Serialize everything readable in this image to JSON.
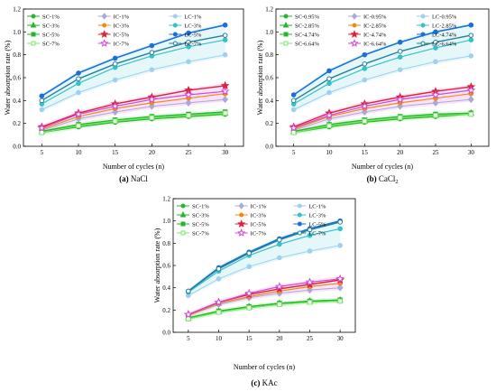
{
  "colors": {
    "SC": "#22b82a",
    "IC": "#ee8a1d",
    "LC": "#1a6fd8",
    "LC_light": "#34c2c9",
    "SC_7": "#7de86a",
    "IC_5": "#e0203a",
    "IC_7": "#d04ad8",
    "LC_7": "#2a7f9a",
    "faint_IC": "#a9a9dd",
    "faint_LC": "#9fd0f0",
    "band_SC": "#bff0b8",
    "band_IC": "#f5c2ea",
    "band_LC": "#c8eef5"
  },
  "chart_data": [
    {
      "type": "line",
      "panel": "a",
      "caption_bold": "(a)",
      "caption_text": "NaCl",
      "xlabel": "Number of cycles (n)",
      "ylabel": "Water absorption rate (%)",
      "x": [
        5,
        10,
        15,
        20,
        25,
        30
      ],
      "xlim": [
        2.5,
        32.5
      ],
      "ylim": [
        0,
        1.2
      ],
      "xticks": [
        "5",
        "10",
        "15",
        "20",
        "25",
        "30"
      ],
      "yticks": [
        "0.0",
        "0.2",
        "0.4",
        "0.6",
        "0.8",
        "1.0",
        "1.2"
      ],
      "legend_placement": "top-left",
      "series": [
        {
          "name": "SC-1%",
          "values": [
            0.12,
            0.17,
            0.21,
            0.24,
            0.26,
            0.28
          ]
        },
        {
          "name": "IC-1%",
          "values": [
            0.14,
            0.24,
            0.3,
            0.35,
            0.38,
            0.41
          ]
        },
        {
          "name": "LC-1%",
          "values": [
            0.32,
            0.47,
            0.58,
            0.67,
            0.74,
            0.8
          ]
        },
        {
          "name": "SC-3%",
          "values": [
            0.13,
            0.18,
            0.22,
            0.25,
            0.27,
            0.29
          ]
        },
        {
          "name": "IC-3%",
          "values": [
            0.15,
            0.26,
            0.33,
            0.38,
            0.42,
            0.46
          ]
        },
        {
          "name": "LC-3%",
          "values": [
            0.37,
            0.55,
            0.69,
            0.79,
            0.87,
            0.93
          ]
        },
        {
          "name": "SC-5%",
          "values": [
            0.13,
            0.19,
            0.23,
            0.26,
            0.28,
            0.3
          ]
        },
        {
          "name": "IC-5%",
          "values": [
            0.17,
            0.29,
            0.37,
            0.43,
            0.49,
            0.53
          ]
        },
        {
          "name": "LC-5%",
          "values": [
            0.44,
            0.64,
            0.77,
            0.88,
            0.99,
            1.06
          ]
        },
        {
          "name": "SC-7%",
          "values": [
            0.12,
            0.18,
            0.22,
            0.25,
            0.27,
            0.29
          ]
        },
        {
          "name": "IC-7%",
          "values": [
            0.16,
            0.28,
            0.35,
            0.41,
            0.45,
            0.48
          ]
        },
        {
          "name": "LC-7%",
          "values": [
            0.4,
            0.59,
            0.72,
            0.82,
            0.91,
            0.97
          ]
        }
      ]
    },
    {
      "type": "line",
      "panel": "b",
      "caption_bold": "(b)",
      "caption_text": "CaCl",
      "caption_sub": "2",
      "xlabel": "Number of cycles (n)",
      "ylabel": "Water absorption rate (%)",
      "x": [
        5,
        10,
        15,
        20,
        25,
        30
      ],
      "xlim": [
        2.5,
        32.5
      ],
      "ylim": [
        0,
        1.2
      ],
      "xticks": [
        "5",
        "10",
        "15",
        "20",
        "25",
        "30"
      ],
      "yticks": [
        "0.0",
        "0.2",
        "0.4",
        "0.6",
        "0.8",
        "1.0",
        "1.2"
      ],
      "legend_placement": "top-left",
      "series": [
        {
          "name": "SC-0.95%",
          "values": [
            0.12,
            0.17,
            0.21,
            0.24,
            0.26,
            0.28
          ]
        },
        {
          "name": "IC-0.95%",
          "values": [
            0.14,
            0.24,
            0.3,
            0.35,
            0.38,
            0.41
          ]
        },
        {
          "name": "LC-0.95%",
          "values": [
            0.32,
            0.47,
            0.58,
            0.67,
            0.74,
            0.79
          ]
        },
        {
          "name": "SC-2.85%",
          "values": [
            0.13,
            0.18,
            0.22,
            0.25,
            0.27,
            0.29
          ]
        },
        {
          "name": "IC-2.85%",
          "values": [
            0.15,
            0.26,
            0.33,
            0.38,
            0.42,
            0.46
          ]
        },
        {
          "name": "LC-2.85%",
          "values": [
            0.37,
            0.55,
            0.68,
            0.78,
            0.86,
            0.93
          ]
        },
        {
          "name": "SC-4.74%",
          "values": [
            0.13,
            0.19,
            0.23,
            0.26,
            0.28,
            0.29
          ]
        },
        {
          "name": "IC-4.74%",
          "values": [
            0.17,
            0.29,
            0.37,
            0.43,
            0.48,
            0.52
          ]
        },
        {
          "name": "LC-4.74%",
          "values": [
            0.45,
            0.66,
            0.8,
            0.91,
            1.0,
            1.06
          ]
        },
        {
          "name": "SC-6.64%",
          "values": [
            0.12,
            0.18,
            0.22,
            0.25,
            0.27,
            0.28
          ]
        },
        {
          "name": "IC-6.64%",
          "values": [
            0.16,
            0.27,
            0.35,
            0.41,
            0.45,
            0.49
          ]
        },
        {
          "name": "LC-6.64%",
          "values": [
            0.4,
            0.59,
            0.72,
            0.83,
            0.91,
            0.97
          ]
        }
      ]
    },
    {
      "type": "line",
      "panel": "c",
      "caption_bold": "(c)",
      "caption_text": "KAc",
      "xlabel": "Number of cycles (n)",
      "ylabel": "Water absorption rate (%)",
      "x": [
        5,
        10,
        15,
        20,
        25,
        30
      ],
      "xlim": [
        2.5,
        32.5
      ],
      "ylim": [
        0,
        1.2
      ],
      "xticks": [
        "5",
        "10",
        "15",
        "20",
        "25",
        "30"
      ],
      "yticks": [
        "0.0",
        "0.2",
        "0.4",
        "0.6",
        "0.8",
        "1.0",
        "1.2"
      ],
      "legend_placement": "top-left",
      "series": [
        {
          "name": "SC-1%",
          "values": [
            0.12,
            0.18,
            0.22,
            0.25,
            0.27,
            0.28
          ]
        },
        {
          "name": "IC-1%",
          "values": [
            0.15,
            0.25,
            0.31,
            0.35,
            0.38,
            0.4
          ]
        },
        {
          "name": "LC-1%",
          "values": [
            0.33,
            0.48,
            0.59,
            0.67,
            0.73,
            0.78
          ]
        },
        {
          "name": "SC-3%",
          "values": [
            0.13,
            0.19,
            0.23,
            0.26,
            0.28,
            0.29
          ]
        },
        {
          "name": "IC-3%",
          "values": [
            0.15,
            0.26,
            0.32,
            0.37,
            0.41,
            0.44
          ]
        },
        {
          "name": "LC-3%",
          "values": [
            0.36,
            0.55,
            0.69,
            0.79,
            0.87,
            0.93
          ]
        },
        {
          "name": "SC-5%",
          "values": [
            0.13,
            0.19,
            0.23,
            0.26,
            0.28,
            0.29
          ]
        },
        {
          "name": "IC-5%",
          "values": [
            0.16,
            0.27,
            0.34,
            0.39,
            0.43,
            0.47
          ]
        },
        {
          "name": "LC-5%",
          "values": [
            0.37,
            0.58,
            0.72,
            0.84,
            0.93,
            1.0
          ]
        },
        {
          "name": "SC-7%",
          "values": [
            0.12,
            0.18,
            0.22,
            0.25,
            0.27,
            0.28
          ]
        },
        {
          "name": "IC-7%",
          "values": [
            0.16,
            0.27,
            0.35,
            0.41,
            0.45,
            0.48
          ]
        },
        {
          "name": "LC-7%",
          "values": [
            0.37,
            0.57,
            0.71,
            0.83,
            0.92,
            0.99
          ]
        }
      ]
    }
  ]
}
